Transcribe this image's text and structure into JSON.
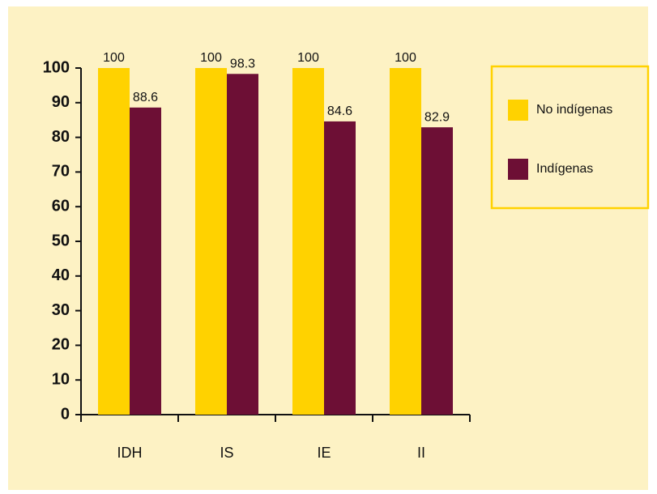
{
  "chart_data": {
    "type": "bar",
    "categories": [
      "IDH",
      "IS",
      "IE",
      "II"
    ],
    "series": [
      {
        "name": "No indígenas",
        "color": "#ffd200",
        "values": [
          100,
          100,
          100,
          100
        ]
      },
      {
        "name": "Indígenas",
        "color": "#6d0f35",
        "values": [
          88.6,
          98.3,
          84.6,
          82.9
        ]
      }
    ],
    "ylim": [
      0,
      100
    ],
    "yticks": [
      0,
      10,
      20,
      30,
      40,
      50,
      60,
      70,
      80,
      90,
      100
    ],
    "legend": "right",
    "grid": false
  }
}
